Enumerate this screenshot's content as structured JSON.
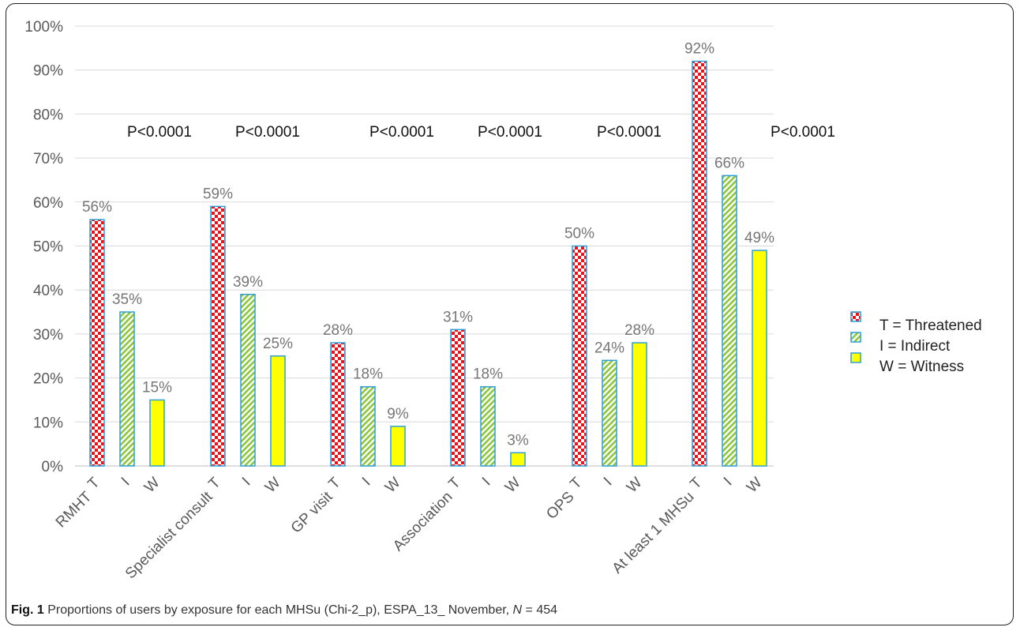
{
  "chart_data": {
    "type": "bar",
    "y_ticks": [
      "0%",
      "10%",
      "20%",
      "30%",
      "40%",
      "50%",
      "60%",
      "70%",
      "80%",
      "90%",
      "100%"
    ],
    "ylim": [
      0,
      100
    ],
    "grid": true,
    "legend_position": "right",
    "groups": [
      {
        "name": "RMHT",
        "bars": [
          {
            "label": "T",
            "value": 56
          },
          {
            "label": "I",
            "value": 35
          },
          {
            "label": "W",
            "value": 15
          }
        ]
      },
      {
        "name": "Specialist consult",
        "bars": [
          {
            "label": "T",
            "value": 59
          },
          {
            "label": "I",
            "value": 39
          },
          {
            "label": "W",
            "value": 25
          }
        ]
      },
      {
        "name": "GP visit",
        "bars": [
          {
            "label": "T",
            "value": 28
          },
          {
            "label": "I",
            "value": 18
          },
          {
            "label": "W",
            "value": 9
          }
        ]
      },
      {
        "name": "Association",
        "bars": [
          {
            "label": "T",
            "value": 31
          },
          {
            "label": "I",
            "value": 18
          },
          {
            "label": "W",
            "value": 3
          }
        ]
      },
      {
        "name": "OPS",
        "bars": [
          {
            "label": "T",
            "value": 50
          },
          {
            "label": "I",
            "value": 24
          },
          {
            "label": "W",
            "value": 28
          }
        ]
      },
      {
        "name": "At least 1 MHSu",
        "bars": [
          {
            "label": "T",
            "value": 92
          },
          {
            "label": "I",
            "value": 66
          },
          {
            "label": "W",
            "value": 49
          }
        ]
      }
    ],
    "data_labels": [
      [
        "56%",
        "35%",
        "15%"
      ],
      [
        "59%",
        "39%",
        "25%"
      ],
      [
        "28%",
        "18%",
        "9%"
      ],
      [
        "31%",
        "18%",
        "3%"
      ],
      [
        "50%",
        "24%",
        "28%"
      ],
      [
        "92%",
        "66%",
        "49%"
      ]
    ],
    "p_values": [
      "P<0.0001",
      "P<0.0001",
      "P<0.0001",
      "P<0.0001",
      "P<0.0001",
      "P<0.0001"
    ],
    "legend": [
      {
        "key": "T",
        "label": "T = Threatened",
        "pattern": "red checkerboard"
      },
      {
        "key": "I",
        "label": "I = Indirect",
        "pattern": "green diagonal hatch"
      },
      {
        "key": "W",
        "label": "W = Witness",
        "pattern": "solid yellow"
      }
    ],
    "colors": {
      "threatened": "#e8141b",
      "indirect": "#8cc63e",
      "witness": "#ffff00",
      "bar_border": "#2e9fd6",
      "grid": "#d9d9d9"
    }
  },
  "caption": {
    "fig_label": "Fig. 1",
    "text": " Proportions of users by exposure for each MHSu (Chi-2_p), ESPA_13_ November, ",
    "n_symbol": "N",
    "n_value": " = 454"
  }
}
